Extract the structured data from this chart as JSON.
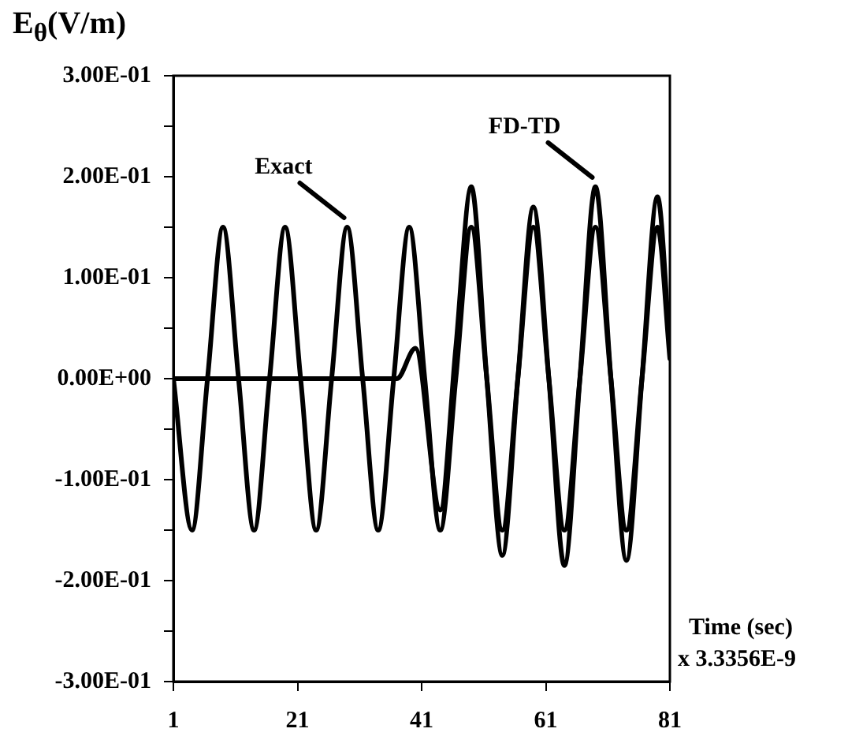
{
  "chart_data": {
    "type": "line",
    "ylabel": "E$_{θ}$(V/m)",
    "xlabel": "Time (sec)",
    "xlim": [
      1,
      81
    ],
    "xticks": [
      1,
      21,
      41,
      61,
      81
    ],
    "ylim": [
      -0.3,
      0.3
    ],
    "yticks": [
      {
        "value": -0.3,
        "label": "-3.00E-01"
      },
      {
        "value": -0.25,
        "label": null
      },
      {
        "value": -0.2,
        "label": "-2.00E-01"
      },
      {
        "value": -0.15,
        "label": null
      },
      {
        "value": -0.1,
        "label": "-1.00E-01"
      },
      {
        "value": -0.05,
        "label": null
      },
      {
        "value": 0,
        "label": "0.00E+00"
      },
      {
        "value": 0.05,
        "label": null
      },
      {
        "value": 0.1,
        "label": "1.00E-01"
      },
      {
        "value": 0.15,
        "label": null
      },
      {
        "value": 0.2,
        "label": "2.00E-01"
      },
      {
        "value": 0.25,
        "label": null
      },
      {
        "value": 0.3,
        "label": "3.00E-01"
      }
    ],
    "grid": false,
    "legend": false,
    "marker": "none",
    "line_style": "solid",
    "series": [
      {
        "color": "#000000",
        "x": [
          1,
          4,
          6.5,
          9,
          11.5,
          14,
          16.5,
          19,
          21.5,
          24,
          26.5,
          29,
          31.5,
          34,
          36.5,
          39,
          41.5,
          44,
          46.5,
          49,
          51.5,
          54,
          56.5,
          59,
          61.5,
          64,
          66.5,
          69,
          71.5,
          74,
          76.5,
          79,
          81
        ],
        "values": [
          0,
          -0.15,
          0,
          0.15,
          0,
          -0.15,
          0,
          0.15,
          0,
          -0.15,
          0,
          0.15,
          0,
          -0.15,
          0,
          0.15,
          0,
          -0.15,
          0,
          0.15,
          0,
          -0.15,
          0,
          0.15,
          0,
          -0.15,
          0,
          0.15,
          0,
          -0.15,
          0,
          0.15,
          0.02
        ]
      },
      {
        "color": "#000000",
        "x": [
          1,
          37,
          40,
          44,
          46.5,
          49,
          51.5,
          54,
          56.5,
          59,
          61.5,
          64,
          66.5,
          69,
          71.5,
          74,
          76.5,
          79,
          81
        ],
        "values": [
          0,
          0,
          0.03,
          -0.13,
          0.03,
          0.19,
          0,
          -0.175,
          0,
          0.17,
          0,
          -0.185,
          0,
          0.19,
          0,
          -0.18,
          0,
          0.18,
          0.03
        ]
      }
    ],
    "annotations": [
      {
        "text": "Exact",
        "x": 29,
        "y": 0.15
      },
      {
        "text": "FD-TD",
        "x": 69,
        "y": 0.19
      },
      "x 3.3356E-9"
    ]
  }
}
